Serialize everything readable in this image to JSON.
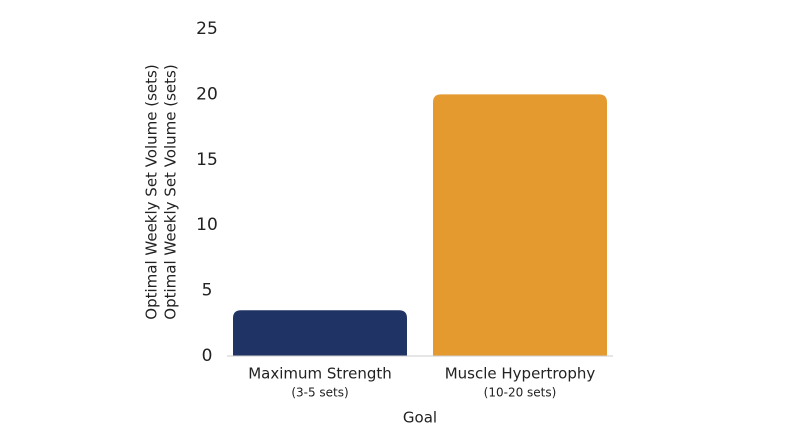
{
  "chart_data": {
    "type": "bar",
    "ylabel": "Optimal Weekly Set Volume (sets)",
    "xlabel": "Goal",
    "categories": [
      "Maximum Strength",
      "Muscle Hypertrophy"
    ],
    "category_notes": [
      "(3-5 sets)",
      "(10-20 sets)"
    ],
    "values": [
      3.5,
      20
    ],
    "colors": [
      "#1f3364",
      "#e59a2f"
    ],
    "ylim": [
      0,
      25
    ],
    "yticks": [
      0,
      5,
      10,
      15,
      20,
      25
    ],
    "grid": false
  }
}
